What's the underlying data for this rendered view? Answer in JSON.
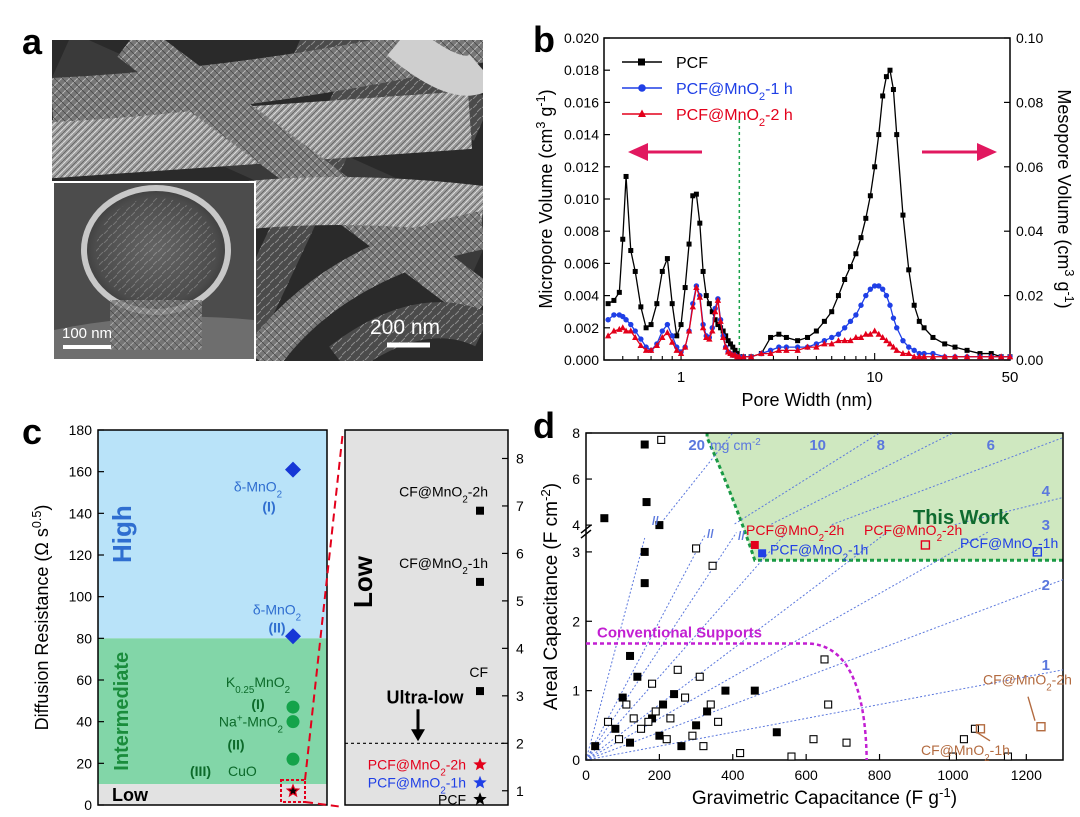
{
  "panel_letters": {
    "a": "a",
    "b": "b",
    "c": "c",
    "d": "d"
  },
  "micrograph": {
    "inset_scale_label": "100 nm",
    "main_scale_label": "200 nm"
  },
  "colors": {
    "pcf": "#000000",
    "h1": "#1f3fe6",
    "h2": "#e3001b",
    "high_fill": "#b9e3f9",
    "intermediate_fill": "#82d6a8",
    "low_fill": "#e2e2e2",
    "high_text": "#2f6ed0",
    "intermediate_text": "#1a8c3c",
    "this_work_fill": "#cfe8c0",
    "this_work_border": "#1a9a45",
    "conventional": "#c21fd2",
    "loading_lines": "#5b78dd",
    "brown": "#b36b40",
    "arrow_pink": "#e1185f"
  },
  "chart_data": [
    {
      "panel": "b",
      "type": "line",
      "xlabel": "Pore Width (nm)",
      "ylabel_left": "Micropore Volume (cm3 g-1)",
      "ylabel_right": "Mesopore Volume (cm3 g-1)",
      "x_scale": "log",
      "xlim": [
        0.4,
        50
      ],
      "ylim_left": [
        0,
        0.02
      ],
      "ylim_right": [
        0,
        0.1
      ],
      "x_ticks": [
        "1",
        "10",
        "50"
      ],
      "y_ticks_left": [
        "0.000",
        "0.002",
        "0.004",
        "0.006",
        "0.008",
        "0.010",
        "0.012",
        "0.014",
        "0.016",
        "0.018",
        "0.020"
      ],
      "y_ticks_right": [
        "0.00",
        "0.02",
        "0.04",
        "0.06",
        "0.08",
        "0.10"
      ],
      "divider_x": 2,
      "legend": [
        "PCF",
        "PCF@MnO2-1 h",
        "PCF@MnO2-2 h"
      ],
      "series": [
        {
          "name": "PCF",
          "axis": "left",
          "x": [
            0.42,
            0.45,
            0.48,
            0.5,
            0.52,
            0.55,
            0.58,
            0.62,
            0.66,
            0.7,
            0.75,
            0.8,
            0.85,
            0.9,
            0.95,
            1.0,
            1.05,
            1.1,
            1.15,
            1.2,
            1.25,
            1.3,
            1.35,
            1.4,
            1.45,
            1.5,
            1.55,
            1.6,
            1.65,
            1.7,
            1.75,
            1.8,
            1.85,
            1.9,
            1.95,
            2.0
          ],
          "values": [
            0.0035,
            0.0037,
            0.0042,
            0.0075,
            0.0114,
            0.0068,
            0.0055,
            0.0033,
            0.002,
            0.0022,
            0.0035,
            0.0055,
            0.0063,
            0.0035,
            0.0015,
            0.0022,
            0.0045,
            0.0072,
            0.0102,
            0.0103,
            0.0085,
            0.0055,
            0.004,
            0.0035,
            0.003,
            0.0025,
            0.0022,
            0.002,
            0.0018,
            0.0015,
            0.0012,
            0.001,
            0.0008,
            0.0006,
            0.0004,
            0.0002
          ]
        },
        {
          "name": "PCF",
          "axis": "right",
          "x": [
            2.1,
            2.3,
            2.6,
            2.9,
            3.2,
            3.5,
            4.0,
            4.5,
            5.0,
            5.5,
            6.0,
            6.5,
            7.0,
            7.5,
            8.0,
            8.5,
            9.0,
            9.5,
            10.0,
            10.5,
            11.0,
            11.5,
            12.0,
            12.5,
            13.0,
            14.0,
            15.0,
            16.0,
            17.0,
            18.0,
            20.0,
            23.0,
            26.0,
            30.0,
            35.0,
            40.0,
            45.0,
            50.0
          ],
          "values": [
            0.001,
            0.001,
            0.002,
            0.007,
            0.008,
            0.007,
            0.006,
            0.007,
            0.009,
            0.012,
            0.015,
            0.02,
            0.025,
            0.029,
            0.033,
            0.038,
            0.044,
            0.051,
            0.06,
            0.07,
            0.082,
            0.088,
            0.09,
            0.084,
            0.07,
            0.045,
            0.028,
            0.017,
            0.012,
            0.01,
            0.007,
            0.005,
            0.004,
            0.003,
            0.002,
            0.002,
            0.001,
            0.001
          ]
        },
        {
          "name": "PCF@MnO2-1 h",
          "axis": "left",
          "x": [
            0.42,
            0.45,
            0.48,
            0.5,
            0.52,
            0.55,
            0.58,
            0.62,
            0.66,
            0.7,
            0.75,
            0.8,
            0.85,
            0.9,
            0.95,
            1.0,
            1.05,
            1.1,
            1.15,
            1.2,
            1.25,
            1.3,
            1.35,
            1.4,
            1.45,
            1.5,
            1.55,
            1.6,
            1.65,
            1.7,
            1.75,
            1.8,
            1.85,
            1.9,
            1.95,
            2.0
          ],
          "values": [
            0.0025,
            0.0028,
            0.0028,
            0.0027,
            0.0025,
            0.0022,
            0.0018,
            0.0013,
            0.0008,
            0.0006,
            0.001,
            0.0018,
            0.0022,
            0.0015,
            0.0008,
            0.0005,
            0.0008,
            0.0018,
            0.0035,
            0.0046,
            0.004,
            0.0022,
            0.0015,
            0.0014,
            0.002,
            0.0032,
            0.0038,
            0.0025,
            0.0015,
            0.0008,
            0.0005,
            0.0004,
            0.0003,
            0.0003,
            0.0002,
            0.0002
          ]
        },
        {
          "name": "PCF@MnO2-1 h",
          "axis": "right",
          "x": [
            2.1,
            2.3,
            2.6,
            2.9,
            3.2,
            3.5,
            4.0,
            4.5,
            5.0,
            5.5,
            6.0,
            6.5,
            7.0,
            7.5,
            8.0,
            8.5,
            9.0,
            9.5,
            10.0,
            10.5,
            11.0,
            11.5,
            12.0,
            12.5,
            13.0,
            14.0,
            15.0,
            16.0,
            17.0,
            18.0,
            20.0,
            23.0,
            26.0,
            30.0,
            35.0,
            40.0,
            45.0,
            50.0
          ],
          "values": [
            0.001,
            0.001,
            0.002,
            0.003,
            0.004,
            0.004,
            0.004,
            0.004,
            0.005,
            0.006,
            0.007,
            0.008,
            0.01,
            0.012,
            0.014,
            0.017,
            0.02,
            0.022,
            0.023,
            0.023,
            0.022,
            0.02,
            0.017,
            0.013,
            0.01,
            0.006,
            0.004,
            0.003,
            0.002,
            0.002,
            0.002,
            0.001,
            0.001,
            0.001,
            0.001,
            0.001,
            0.001,
            0.001
          ]
        },
        {
          "name": "PCF@MnO2-2 h",
          "axis": "left",
          "x": [
            0.42,
            0.45,
            0.48,
            0.5,
            0.52,
            0.55,
            0.58,
            0.62,
            0.66,
            0.7,
            0.75,
            0.8,
            0.85,
            0.9,
            0.95,
            1.0,
            1.05,
            1.1,
            1.15,
            1.2,
            1.25,
            1.3,
            1.35,
            1.4,
            1.45,
            1.5,
            1.55,
            1.6,
            1.65,
            1.7,
            1.75,
            1.8,
            1.85,
            1.9,
            1.95,
            2.0
          ],
          "values": [
            0.0015,
            0.0018,
            0.0019,
            0.002,
            0.0018,
            0.0018,
            0.0014,
            0.0009,
            0.0006,
            0.0006,
            0.0009,
            0.0014,
            0.0017,
            0.0011,
            0.0006,
            0.0004,
            0.0008,
            0.0018,
            0.0033,
            0.0045,
            0.0039,
            0.002,
            0.0014,
            0.0013,
            0.0018,
            0.003,
            0.0037,
            0.0024,
            0.0014,
            0.0008,
            0.0005,
            0.0004,
            0.0003,
            0.0003,
            0.0002,
            0.0002
          ]
        },
        {
          "name": "PCF@MnO2-2 h",
          "axis": "right",
          "x": [
            2.1,
            2.3,
            2.6,
            2.9,
            3.2,
            3.5,
            4.0,
            4.5,
            5.0,
            5.5,
            6.0,
            6.5,
            7.0,
            7.5,
            8.0,
            8.5,
            9.0,
            9.5,
            10.0,
            10.5,
            11.0,
            11.5,
            12.0,
            12.5,
            13.0,
            14.0,
            15.0,
            16.0,
            17.0,
            18.0,
            20.0,
            23.0,
            26.0,
            30.0,
            35.0,
            40.0,
            45.0,
            50.0
          ],
          "values": [
            0.001,
            0.001,
            0.002,
            0.002,
            0.003,
            0.003,
            0.003,
            0.004,
            0.004,
            0.005,
            0.005,
            0.006,
            0.006,
            0.006,
            0.007,
            0.007,
            0.008,
            0.008,
            0.009,
            0.008,
            0.007,
            0.006,
            0.005,
            0.004,
            0.003,
            0.002,
            0.002,
            0.001,
            0.001,
            0.001,
            0.001,
            0.001,
            0.001,
            0.001,
            0.001,
            0.001,
            0.001,
            0.001
          ]
        }
      ]
    },
    {
      "panel": "c",
      "type": "scatter",
      "ylabel": "Diffusion Resistance (Ω s0.5)",
      "ylim_left": [
        0,
        180
      ],
      "ylim_right": [
        0.7,
        8.6
      ],
      "y_ticks_left": [
        "0",
        "20",
        "40",
        "60",
        "80",
        "100",
        "120",
        "140",
        "160",
        "180"
      ],
      "y_ticks_right": [
        "1",
        "2",
        "3",
        "4",
        "5",
        "6",
        "7",
        "8"
      ],
      "zones": [
        {
          "label": "High",
          "from": 80,
          "to": 180
        },
        {
          "label": "Intermediate",
          "from": 10,
          "to": 80
        },
        {
          "label": "Low",
          "from": 0,
          "to": 10
        }
      ],
      "right_zone_label": "Low",
      "threshold_label": "Ultra-low",
      "threshold_value": 2.0,
      "points_left": [
        {
          "label": "δ-MnO2",
          "tag": "(I)",
          "value": 161,
          "marker": "diamond",
          "color": "#1637d6"
        },
        {
          "label": "δ-MnO2",
          "tag": "(II)",
          "value": 81,
          "marker": "diamond",
          "color": "#1637d6"
        },
        {
          "label": "K0.25MnO2",
          "tag": "(I)",
          "value": 47,
          "marker": "circle",
          "color": "#14a34a"
        },
        {
          "label": "Na+-MnO2",
          "tag": "(II)",
          "value": 40,
          "marker": "circle",
          "color": "#14a34a"
        },
        {
          "label": "CuO",
          "tag": "(III)",
          "value": 22,
          "marker": "circle",
          "color": "#14a34a"
        }
      ],
      "points_right": [
        {
          "label": "CF@MnO2-2h",
          "value": 6.9,
          "marker": "square",
          "color": "#000000"
        },
        {
          "label": "CF@MnO2-1h",
          "value": 5.4,
          "marker": "square",
          "color": "#000000"
        },
        {
          "label": "CF",
          "value": 3.1,
          "marker": "square",
          "color": "#000000"
        },
        {
          "label": "PCF@MnO2-2h",
          "value": 1.55,
          "marker": "star",
          "color": "#e3001b"
        },
        {
          "label": "PCF@MnO2-1h",
          "value": 1.17,
          "marker": "star",
          "color": "#1f3fe6"
        },
        {
          "label": "PCF",
          "value": 0.82,
          "marker": "star",
          "color": "#000000"
        }
      ]
    },
    {
      "panel": "d",
      "type": "scatter",
      "xlabel": "Gravimetric Capacitance (F g-1)",
      "ylabel": "Areal Capacitance (F cm-2)",
      "xlim": [
        0,
        1300
      ],
      "y_ticks": [
        "0",
        "1",
        "2",
        "3",
        "4",
        "6",
        "8"
      ],
      "x_ticks": [
        "0",
        "200",
        "400",
        "600",
        "800",
        "1000",
        "1200"
      ],
      "y_axis_break": [
        3.3,
        4
      ],
      "loading_lines_mg_cm2": [
        20,
        10,
        8,
        6,
        4,
        3,
        2,
        1
      ],
      "loading_line_labels": [
        "20",
        "10",
        "8",
        "6",
        "4",
        "3",
        "2",
        "1"
      ],
      "loading_unit": "mg cm-2",
      "regions": [
        {
          "label": "This Work"
        },
        {
          "label": "Conventional Supports"
        }
      ],
      "filled_points": [
        [
          25,
          0.2
        ],
        [
          50,
          4.3
        ],
        [
          160,
          7.5
        ],
        [
          165,
          5
        ],
        [
          160,
          3
        ],
        [
          160,
          2.55
        ],
        [
          200,
          4
        ],
        [
          80,
          0.45
        ],
        [
          100,
          0.9
        ],
        [
          120,
          1.5
        ],
        [
          140,
          1.2
        ],
        [
          180,
          0.6
        ],
        [
          210,
          0.8
        ],
        [
          240,
          0.95
        ],
        [
          260,
          0.2
        ],
        [
          300,
          0.5
        ],
        [
          330,
          0.7
        ],
        [
          380,
          1
        ],
        [
          460,
          1
        ],
        [
          120,
          0.25
        ],
        [
          520,
          0.4
        ],
        [
          200,
          0.35
        ]
      ],
      "open_points": [
        [
          205,
          7.7
        ],
        [
          300,
          3.05
        ],
        [
          345,
          2.8
        ],
        [
          60,
          0.55
        ],
        [
          90,
          0.3
        ],
        [
          110,
          0.8
        ],
        [
          130,
          0.6
        ],
        [
          150,
          0.45
        ],
        [
          170,
          0.55
        ],
        [
          180,
          1.1
        ],
        [
          190,
          0.7
        ],
        [
          220,
          0.3
        ],
        [
          230,
          0.6
        ],
        [
          250,
          1.3
        ],
        [
          270,
          0.9
        ],
        [
          290,
          0.35
        ],
        [
          310,
          1.2
        ],
        [
          320,
          0.2
        ],
        [
          340,
          0.8
        ],
        [
          360,
          0.55
        ],
        [
          420,
          0.1
        ],
        [
          560,
          0.05
        ],
        [
          620,
          0.3
        ],
        [
          650,
          1.45
        ],
        [
          660,
          0.8
        ],
        [
          710,
          0.25
        ],
        [
          1000,
          0.05
        ],
        [
          1030,
          0.3
        ],
        [
          1060,
          0.45
        ],
        [
          1150,
          0.05
        ]
      ],
      "highlight_points": [
        {
          "label": "PCF@MnO2-2h",
          "x": 460,
          "y": 3.1,
          "marker": "filled-square",
          "color": "#e3001b"
        },
        {
          "label": "PCF@MnO2-1h",
          "x": 480,
          "y": 2.98,
          "marker": "filled-square",
          "color": "#1f3fe6"
        },
        {
          "label": "PCF@MnO2-2h",
          "x": 925,
          "y": 3.1,
          "marker": "open-square",
          "color": "#e3001b"
        },
        {
          "label": "PCF@MnO2-1h",
          "x": 1230,
          "y": 3.0,
          "marker": "open-square",
          "color": "#1f3fe6"
        },
        {
          "label": "CF@MnO2-2h",
          "x": 1240,
          "y": 0.48,
          "marker": "open-square",
          "color": "#b36b40"
        },
        {
          "label": "CF@MnO2-1h",
          "x": 1075,
          "y": 0.45,
          "marker": "open-square",
          "color": "#b36b40"
        }
      ]
    }
  ]
}
